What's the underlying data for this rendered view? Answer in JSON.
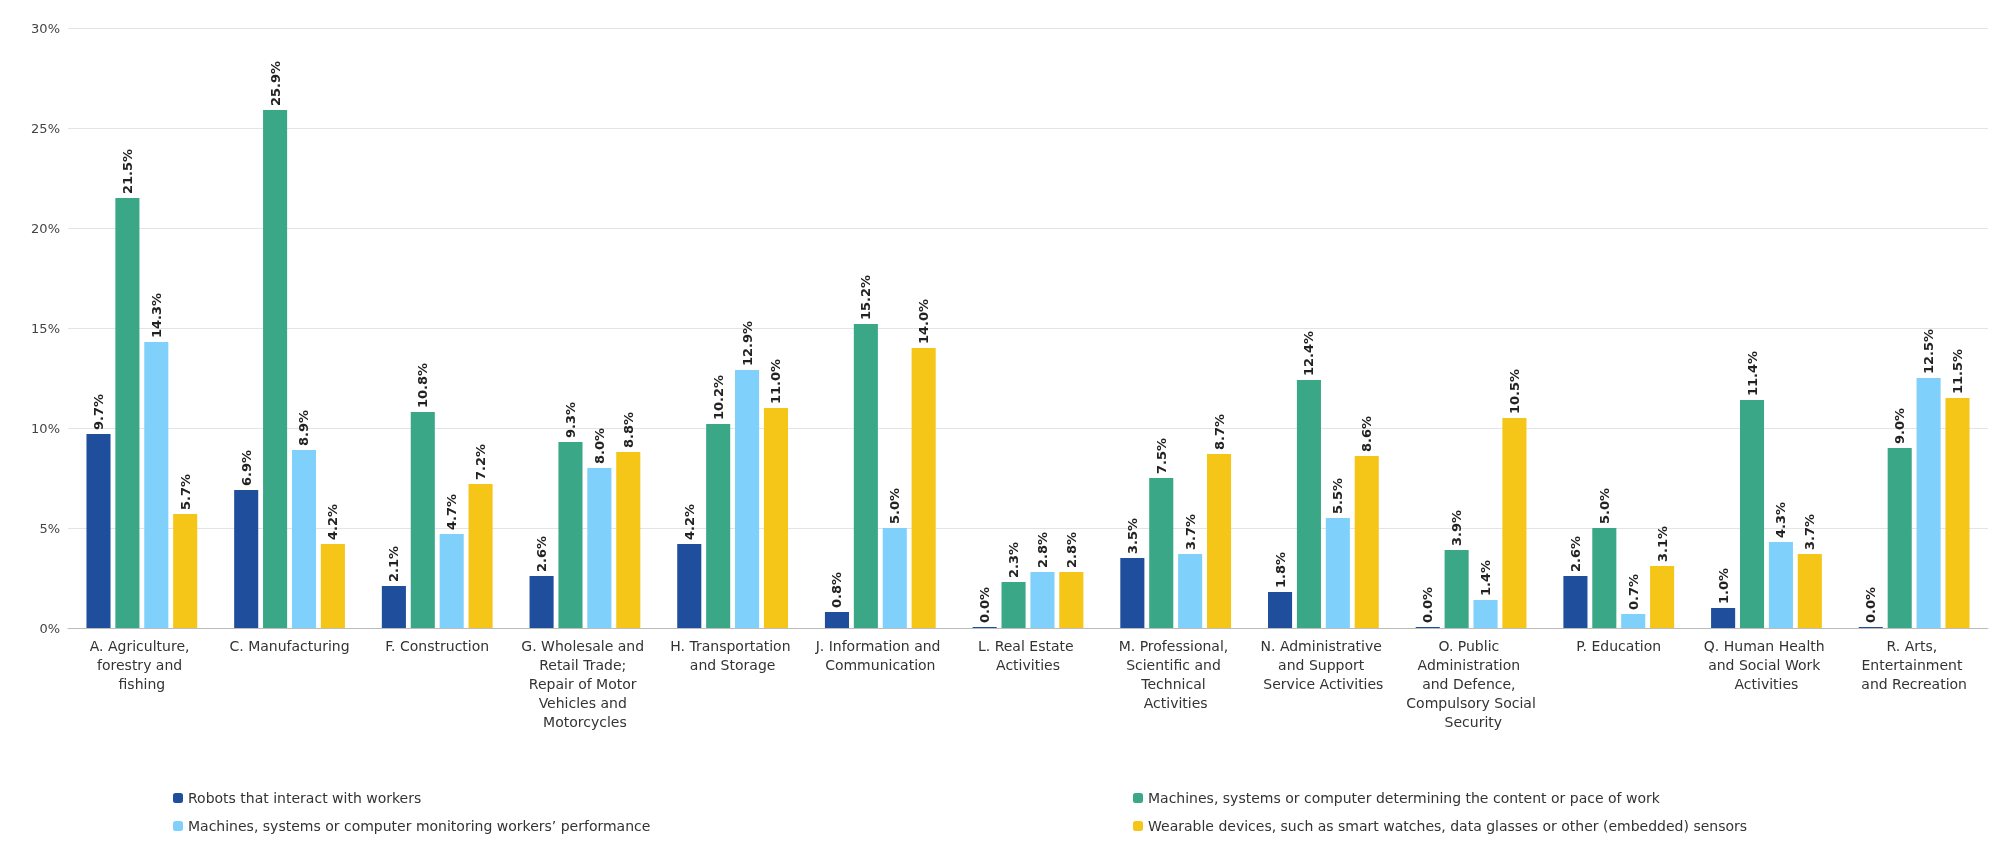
{
  "chart_data": {
    "type": "bar",
    "categories": [
      "A. Agriculture, forestry and fishing",
      "C. Manufacturing",
      "F. Construction",
      "G. Wholesale and Retail Trade; Repair of Motor Vehicles and Motorcycles",
      "H. Transportation and Storage",
      "J. Information and Communication",
      "L. Real Estate Activities",
      "M. Professional, Scientific and Technical Activities",
      "N. Administrative and Support Service Activities",
      "O. Public Administration and Defence, Compulsory Social Security",
      "P. Education",
      "Q. Human Health and Social Work Activities",
      "R. Arts, Entertainment and Recreation"
    ],
    "series": [
      {
        "name": "Robots that interact with workers",
        "color": "#1f4e9c",
        "values": [
          9.7,
          6.9,
          2.1,
          2.6,
          4.2,
          0.8,
          0.0,
          3.5,
          1.8,
          0.0,
          2.6,
          1.0,
          0.0
        ],
        "value_labels": [
          "9.7%",
          "6.9%",
          "2.1%",
          "2.6%",
          "4.2%",
          "0.8%",
          "0.0%",
          "3.5%",
          "1.8%",
          "0.0%",
          "2.6%",
          "1.0%",
          "0.0%"
        ]
      },
      {
        "name": "Machines, systems or computer determining the content or pace of work",
        "color": "#3aa886",
        "values": [
          21.5,
          25.9,
          10.8,
          9.3,
          10.2,
          15.2,
          2.3,
          7.5,
          12.4,
          3.9,
          5.0,
          11.4,
          9.0
        ],
        "value_labels": [
          "21.5%",
          "25.9%",
          "10.8%",
          "9.3%",
          "10.2%",
          "15.2%",
          "2.3%",
          "7.5%",
          "12.4%",
          "3.9%",
          "5.0%",
          "11.4%",
          "9.0%"
        ]
      },
      {
        "name": "Machines, systems or computer monitoring workers’ performance",
        "color": "#7fd0fa",
        "values": [
          14.3,
          8.9,
          4.7,
          8.0,
          12.9,
          5.0,
          2.8,
          3.7,
          5.5,
          1.4,
          0.7,
          4.3,
          12.5
        ],
        "value_labels": [
          "14.3%",
          "8.9%",
          "4.7%",
          "8.0%",
          "12.9%",
          "5.0%",
          "2.8%",
          "3.7%",
          "5.5%",
          "1.4%",
          "0.7%",
          "4.3%",
          "12.5%"
        ]
      },
      {
        "name": "Wearable devices, such as smart watches, data glasses or other (embedded) sensors",
        "color": "#f5c518",
        "values": [
          5.7,
          4.2,
          7.2,
          8.8,
          11.0,
          14.0,
          2.8,
          8.7,
          8.6,
          10.5,
          3.1,
          3.7,
          11.5
        ],
        "value_labels": [
          "5.7%",
          "4.2%",
          "7.2%",
          "8.8%",
          "11.0%",
          "14.0%",
          "2.8%",
          "8.7%",
          "8.6%",
          "10.5%",
          "3.1%",
          "3.7%",
          "11.5%"
        ]
      }
    ],
    "ylim": [
      0,
      30
    ],
    "yticks": [
      {
        "value": 0,
        "label": "0%"
      },
      {
        "value": 5,
        "label": "5%"
      },
      {
        "value": 10,
        "label": "10%"
      },
      {
        "value": 15,
        "label": "15%"
      },
      {
        "value": 20,
        "label": "20%"
      },
      {
        "value": 25,
        "label": "25%"
      },
      {
        "value": 30,
        "label": "30%"
      }
    ],
    "grid": "y",
    "legend": "bottom"
  }
}
